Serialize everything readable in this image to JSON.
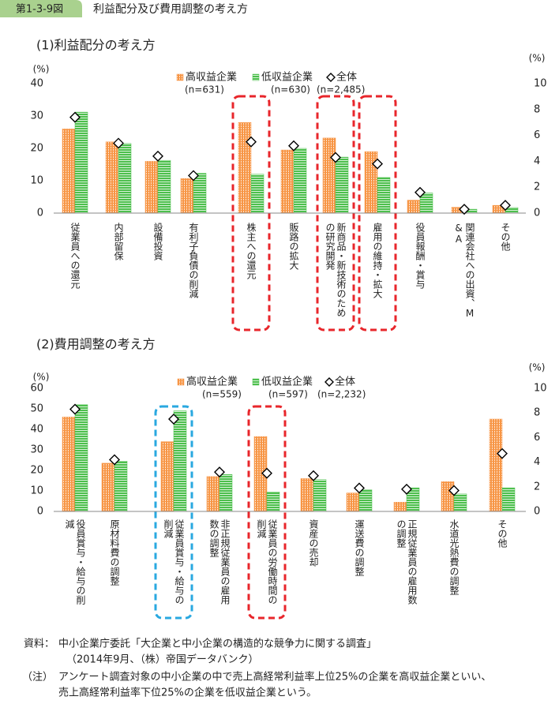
{
  "header": {
    "figure_no": "第1-3-9図",
    "title": "利益配分及び費用調整の考え方"
  },
  "chart_data": [
    {
      "type": "bar",
      "title": "(1)利益配分の考え方",
      "y_unit": "(%)",
      "y2_unit": "(%)",
      "categories": [
        "従業員への還元",
        "内部留保",
        "設備投資",
        "有利子負債の削減",
        "株主への還元",
        "販路の拡大",
        "新商品・新技術のための研究開発",
        "雇用の維持・拡大",
        "役員報酬・賞与",
        "関連会社への出資、M&A",
        "その他"
      ],
      "series": [
        {
          "name": "高収益企業",
          "n": "(n=631)",
          "color": "#f79646",
          "hatch": "vertical",
          "values": [
            26,
            22,
            16,
            10.7,
            28,
            19.5,
            23.2,
            19,
            4,
            1.8,
            2.4
          ]
        },
        {
          "name": "低収益企業",
          "n": "(n=630)",
          "color": "#4dbf4d",
          "hatch": "horizontal",
          "values": [
            31.2,
            21.5,
            16.3,
            12.3,
            12,
            20,
            17.3,
            11,
            6.2,
            1.2,
            1.7
          ]
        },
        {
          "name": "全体",
          "n": "(n=2,485)",
          "color": "#000000",
          "marker": "diamond",
          "axis": "y2",
          "values": [
            7.4,
            5.4,
            4.4,
            2.9,
            5.5,
            5.2,
            4.3,
            3.8,
            1.6,
            0.3,
            0.6
          ]
        }
      ],
      "ylim": [
        0,
        40
      ],
      "yticks": [
        0,
        10,
        20,
        30,
        40
      ],
      "y2lim": [
        0,
        10
      ],
      "y2ticks": [
        0,
        2,
        4,
        6,
        8,
        10
      ],
      "highlights": [
        {
          "category": "株主への還元",
          "color": "#e8262b"
        },
        {
          "category": "新商品・新技術のための研究開発",
          "color": "#e8262b"
        },
        {
          "category": "雇用の維持・拡大",
          "color": "#e8262b"
        }
      ]
    },
    {
      "type": "bar",
      "title": "(2)費用調整の考え方",
      "y_unit": "(%)",
      "y2_unit": "(%)",
      "categories": [
        "役員賞与・給与の削減",
        "原材料費の調整",
        "従業員賞与・給与の削減",
        "非正規従業員の雇用数の調整",
        "従業員の労働時間の削減",
        "資産の売却",
        "運送費の調整",
        "正規従業員の雇用数の調整",
        "水道光熱費の調整",
        "その他"
      ],
      "series": [
        {
          "name": "高収益企業",
          "n": "(n=559)",
          "color": "#f79646",
          "hatch": "vertical",
          "values": [
            46,
            23.5,
            34,
            17,
            36.5,
            16,
            9,
            4.5,
            14.5,
            45
          ]
        },
        {
          "name": "低収益企業",
          "n": "(n=597)",
          "color": "#4dbf4d",
          "hatch": "horizontal",
          "values": [
            52,
            24.5,
            49,
            18,
            9.5,
            15.5,
            10.5,
            11.5,
            8.5,
            11.5
          ]
        },
        {
          "name": "全体",
          "n": "(n=2,232)",
          "color": "#000000",
          "marker": "diamond",
          "axis": "y2",
          "values": [
            8.3,
            4.2,
            7.5,
            3.2,
            3.1,
            2.9,
            1.9,
            1.8,
            1.7,
            4.7
          ]
        }
      ],
      "ylim": [
        0,
        60
      ],
      "yticks": [
        0,
        10,
        20,
        30,
        40,
        50,
        60
      ],
      "y2lim": [
        0,
        10
      ],
      "y2ticks": [
        0,
        2,
        4,
        6,
        8,
        10
      ],
      "highlights": [
        {
          "category": "従業員賞与・給与の削減",
          "color": "#29a8e0"
        },
        {
          "category": "従業員の労働時間の削減",
          "color": "#e8262b"
        }
      ]
    }
  ],
  "footer": {
    "source_label": "資料：",
    "source_lines": [
      "中小企業庁委託「大企業と中小企業の構造的な競争力に関する調査」",
      "（2014年9月、（株）帝国データバンク）"
    ],
    "note_label": "（注）",
    "note_lines": [
      "アンケート調査対象の中小企業の中で売上高経常利益率上位25%の企業を高収益企業といい、",
      "売上高経常利益率下位25%の企業を低収益企業という。"
    ]
  }
}
